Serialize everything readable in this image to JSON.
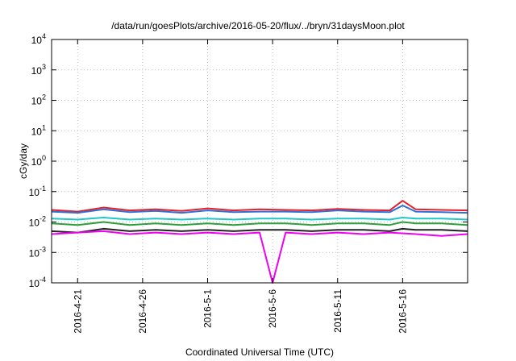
{
  "chart_data": {
    "type": "line",
    "title": "/data/run/goesPlots/archive/2016-05-20/flux/../bryn/31daysMoon.plot",
    "xlabel": "Coordinated Universal Time (UTC)",
    "ylabel": "cGy/day",
    "yscale": "log",
    "ylim": [
      0.0001,
      10000
    ],
    "xlim": [
      "2016-04-19",
      "2016-05-21"
    ],
    "y_ticks": [
      {
        "value": 0.0001,
        "base": "10",
        "exp": "-4"
      },
      {
        "value": 0.001,
        "base": "10",
        "exp": "-3"
      },
      {
        "value": 0.01,
        "base": "10",
        "exp": "-2"
      },
      {
        "value": 0.1,
        "base": "10",
        "exp": "-1"
      },
      {
        "value": 1,
        "base": "10",
        "exp": "0"
      },
      {
        "value": 10,
        "base": "10",
        "exp": "1"
      },
      {
        "value": 100,
        "base": "10",
        "exp": "2"
      },
      {
        "value": 1000,
        "base": "10",
        "exp": "3"
      },
      {
        "value": 10000,
        "base": "10",
        "exp": "4"
      }
    ],
    "x_ticks": [
      "2016-4-21",
      "2016-4-26",
      "2016-5-1",
      "2016-5-6",
      "2016-5-11",
      "2016-5-16"
    ],
    "x_tick_dates": [
      "2016-04-21",
      "2016-04-26",
      "2016-05-01",
      "2016-05-06",
      "2016-05-11",
      "2016-05-16"
    ],
    "grid": true,
    "series": [
      {
        "color": "#e8202a",
        "x": [
          "2016-04-19",
          "2016-04-21",
          "2016-04-23",
          "2016-04-25",
          "2016-04-27",
          "2016-04-29",
          "2016-05-01",
          "2016-05-03",
          "2016-05-05",
          "2016-05-07",
          "2016-05-09",
          "2016-05-11",
          "2016-05-13",
          "2016-05-15",
          "2016-05-16",
          "2016-05-17",
          "2016-05-19",
          "2016-05-21"
        ],
        "y": [
          0.025,
          0.022,
          0.03,
          0.024,
          0.026,
          0.023,
          0.028,
          0.024,
          0.026,
          0.025,
          0.024,
          0.027,
          0.025,
          0.024,
          0.05,
          0.026,
          0.025,
          0.024
        ]
      },
      {
        "color": "#2f6fd8",
        "x": [
          "2016-04-19",
          "2016-04-21",
          "2016-04-23",
          "2016-04-25",
          "2016-04-27",
          "2016-04-29",
          "2016-05-01",
          "2016-05-03",
          "2016-05-05",
          "2016-05-07",
          "2016-05-09",
          "2016-05-11",
          "2016-05-13",
          "2016-05-15",
          "2016-05-16",
          "2016-05-17",
          "2016-05-19",
          "2016-05-21"
        ],
        "y": [
          0.022,
          0.02,
          0.026,
          0.021,
          0.023,
          0.02,
          0.024,
          0.021,
          0.022,
          0.022,
          0.021,
          0.024,
          0.022,
          0.021,
          0.035,
          0.022,
          0.021,
          0.02
        ]
      },
      {
        "color": "#1ec8c8",
        "x": [
          "2016-04-19",
          "2016-04-21",
          "2016-04-23",
          "2016-04-25",
          "2016-04-27",
          "2016-04-29",
          "2016-05-01",
          "2016-05-03",
          "2016-05-05",
          "2016-05-07",
          "2016-05-09",
          "2016-05-11",
          "2016-05-13",
          "2016-05-15",
          "2016-05-16",
          "2016-05-17",
          "2016-05-19",
          "2016-05-21"
        ],
        "y": [
          0.013,
          0.012,
          0.014,
          0.012,
          0.013,
          0.012,
          0.013,
          0.012,
          0.013,
          0.013,
          0.012,
          0.013,
          0.013,
          0.012,
          0.014,
          0.013,
          0.013,
          0.012
        ]
      },
      {
        "color": "#2e9e3a",
        "x": [
          "2016-04-19",
          "2016-04-21",
          "2016-04-23",
          "2016-04-25",
          "2016-04-27",
          "2016-04-29",
          "2016-05-01",
          "2016-05-03",
          "2016-05-05",
          "2016-05-07",
          "2016-05-09",
          "2016-05-11",
          "2016-05-13",
          "2016-05-15",
          "2016-05-16",
          "2016-05-17",
          "2016-05-19",
          "2016-05-21"
        ],
        "y": [
          0.009,
          0.008,
          0.01,
          0.008,
          0.009,
          0.008,
          0.009,
          0.008,
          0.009,
          0.009,
          0.008,
          0.009,
          0.009,
          0.008,
          0.01,
          0.009,
          0.009,
          0.008
        ]
      },
      {
        "color": "#222222",
        "x": [
          "2016-04-19",
          "2016-04-21",
          "2016-04-23",
          "2016-04-25",
          "2016-04-27",
          "2016-04-29",
          "2016-05-01",
          "2016-05-03",
          "2016-05-05",
          "2016-05-07",
          "2016-05-09",
          "2016-05-11",
          "2016-05-13",
          "2016-05-15",
          "2016-05-16",
          "2016-05-17",
          "2016-05-19",
          "2016-05-21"
        ],
        "y": [
          0.005,
          0.0045,
          0.006,
          0.005,
          0.0055,
          0.005,
          0.0055,
          0.005,
          0.0055,
          0.0055,
          0.005,
          0.0055,
          0.0055,
          0.005,
          0.006,
          0.0055,
          0.0055,
          0.005
        ]
      },
      {
        "color": "#f000f0",
        "x": [
          "2016-04-19",
          "2016-04-21",
          "2016-04-23",
          "2016-04-25",
          "2016-04-27",
          "2016-04-29",
          "2016-05-01",
          "2016-05-03",
          "2016-05-05",
          "2016-05-06",
          "2016-05-07",
          "2016-05-09",
          "2016-05-11",
          "2016-05-13",
          "2016-05-15",
          "2016-05-17",
          "2016-05-19",
          "2016-05-21"
        ],
        "y": [
          0.004,
          0.0045,
          0.005,
          0.004,
          0.0045,
          0.004,
          0.0045,
          0.004,
          0.0045,
          0.0001,
          0.0045,
          0.004,
          0.0045,
          0.004,
          0.0045,
          0.004,
          0.0035,
          0.004
        ]
      }
    ]
  }
}
